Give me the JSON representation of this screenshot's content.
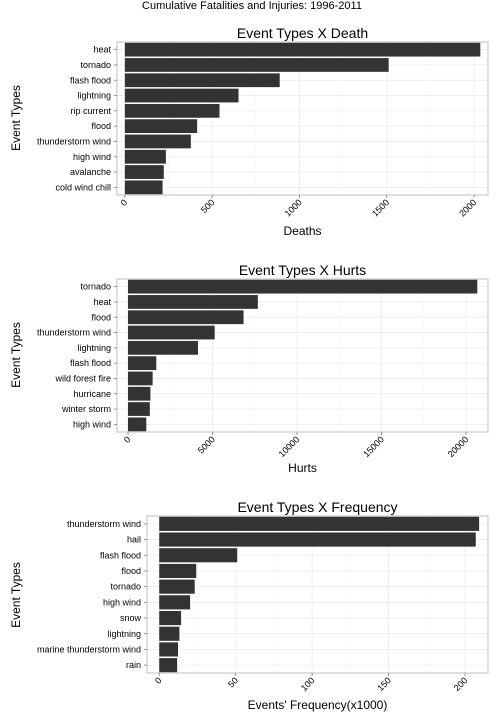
{
  "figure": {
    "title": "Cumulative Fatalities and Injuries: 1996-2011"
  },
  "colors": {
    "bar": "#333333",
    "panel_bg": "#ffffff",
    "panel_border": "#bfbfbf",
    "grid_major": "#ebebeb",
    "grid_minor": "#f5f5f5"
  },
  "chart_data": [
    {
      "type": "bar",
      "orientation": "horizontal",
      "title": "Event Types X Death",
      "xlabel": "Deaths",
      "ylabel": "Event Types",
      "categories": [
        "heat",
        "tornado",
        "flash flood",
        "lightning",
        "rip current",
        "flood",
        "thunderstorm wind",
        "high wind",
        "avalanche",
        "cold wind chill"
      ],
      "values": [
        2036,
        1511,
        887,
        651,
        542,
        414,
        378,
        235,
        223,
        216
      ],
      "xlim": [
        -45,
        2080
      ],
      "xticks": [
        0,
        500,
        1000,
        1500,
        2000
      ],
      "grid": true
    },
    {
      "type": "bar",
      "orientation": "horizontal",
      "title": "Event Types X Hurts",
      "xlabel": "Hurts",
      "ylabel": "Event Types",
      "categories": [
        "tornado",
        "heat",
        "flood",
        "thunderstorm wind",
        "lightning",
        "flash flood",
        "wild forest fire",
        "hurricane",
        "winter storm",
        "high wind"
      ],
      "values": [
        20667,
        7683,
        6838,
        5129,
        4141,
        1674,
        1458,
        1328,
        1292,
        1083
      ],
      "xlim": [
        -650,
        21300
      ],
      "xticks": [
        0,
        5000,
        10000,
        15000,
        20000
      ],
      "grid": true
    },
    {
      "type": "bar",
      "orientation": "horizontal",
      "title": "Event Types X Frequency",
      "xlabel": "Events' Frequency(x1000)",
      "ylabel": "Event Types",
      "categories": [
        "thunderstorm wind",
        "hail",
        "flash flood",
        "flood",
        "tornado",
        "high wind",
        "snow",
        "lightning",
        "marine thunderstorm wind",
        "rain"
      ],
      "values": [
        209.2,
        207.0,
        51.0,
        24.2,
        23.2,
        20.2,
        14.3,
        13.2,
        12.3,
        11.7
      ],
      "xlim": [
        -8,
        215
      ],
      "xticks": [
        0,
        50,
        100,
        150,
        200
      ],
      "grid": true
    }
  ]
}
